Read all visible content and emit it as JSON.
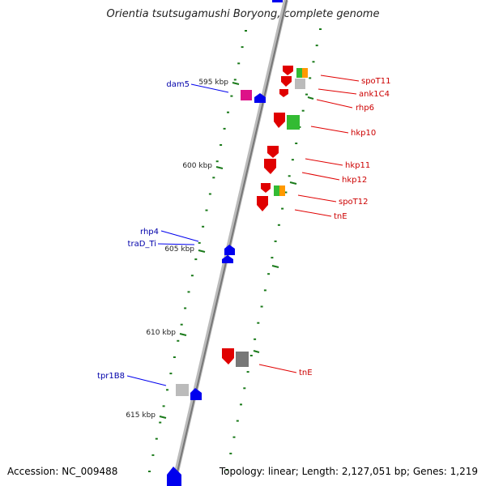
{
  "title": "Orientia tsutsugamushi Boryong, complete genome",
  "accession_text": "Accession: NC_009488",
  "summary_text": "Topology: linear; Length: 2,127,051 bp; Genes: 1,219",
  "colors": {
    "backbone": "#888888",
    "forward_strand": "#e00000",
    "reverse_strand": "#0000ee",
    "tick": "#1a7a1a",
    "other_feature_green": "#33bb33",
    "other_feature_orange": "#ff9900",
    "other_feature_gray": "#aaaaaa",
    "other_feature_magenta": "#dd1188"
  },
  "ticks": [
    {
      "label": "595 kbp",
      "kbp": 595
    },
    {
      "label": "600 kbp",
      "kbp": 600
    },
    {
      "label": "605 kbp",
      "kbp": 605
    },
    {
      "label": "610 kbp",
      "kbp": 610
    },
    {
      "label": "615 kbp",
      "kbp": 615
    }
  ],
  "right_labels": [
    {
      "text": "spoT11"
    },
    {
      "text": "ank1C4"
    },
    {
      "text": "rhp6"
    },
    {
      "text": "hkp10"
    },
    {
      "text": "hkp11"
    },
    {
      "text": "hkp12"
    },
    {
      "text": "spoT12"
    },
    {
      "text": "tnE"
    },
    {
      "text": "tnE"
    }
  ],
  "left_labels": [
    {
      "text": "dam5"
    },
    {
      "text": "rhp4"
    },
    {
      "text": "traD_Ti"
    },
    {
      "text": "tpr1B8"
    }
  ]
}
